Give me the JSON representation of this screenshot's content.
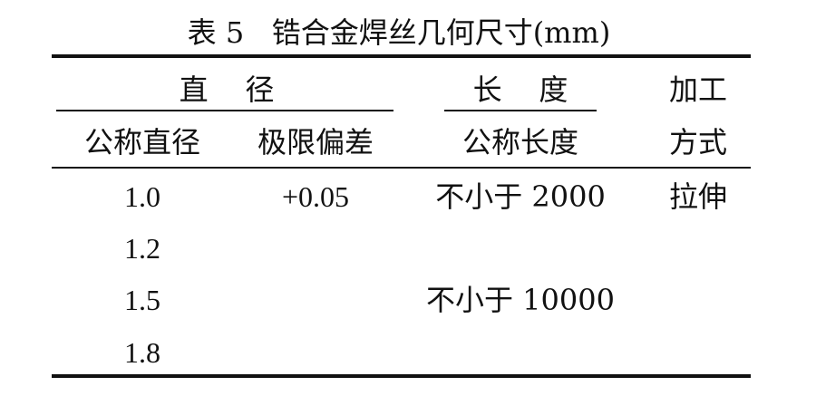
{
  "title": "表 5   锆合金焊丝几何尺寸(mm)",
  "headers": {
    "diameter_group": "直    径",
    "length_group": "长    度",
    "process": "加工\n方式",
    "process_line1": "加工",
    "process_line2": "方式",
    "nominal_diameter": "公称直径",
    "tolerance": "极限偏差",
    "nominal_length": "公称长度"
  },
  "rows": [
    {
      "diameter": "1.0",
      "tolerance": "+0.05",
      "length": "不小于 2000",
      "process": "拉伸"
    },
    {
      "diameter": "1.2"
    },
    {
      "diameter": "1.5",
      "length": "不小于 10000"
    },
    {
      "diameter": "1.8"
    }
  ]
}
